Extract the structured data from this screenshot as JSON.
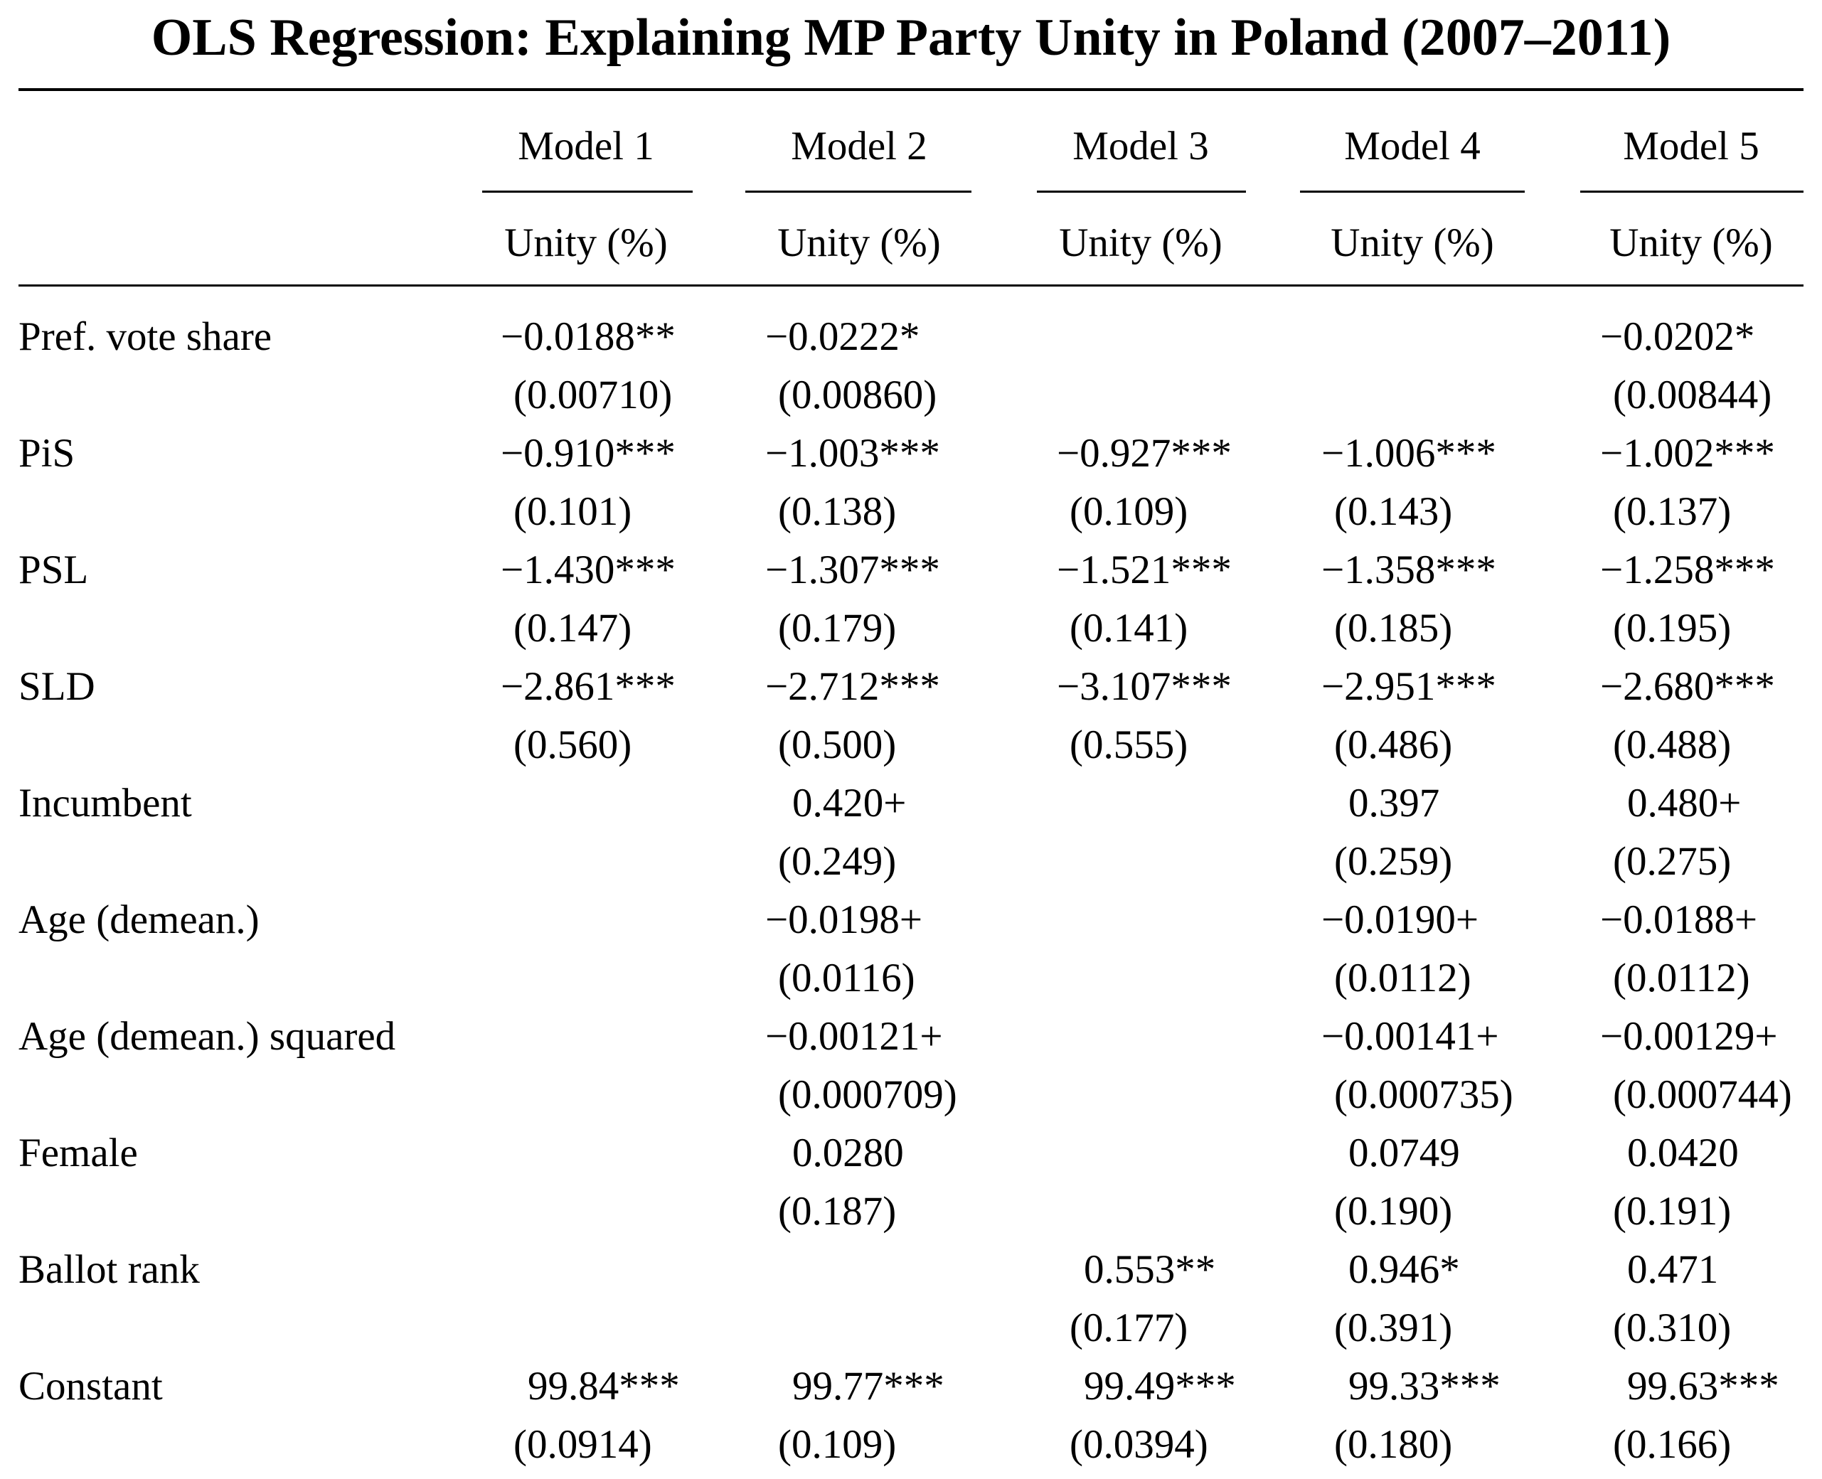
{
  "title": "OLS Regression: Explaining MP Party Unity in Poland (2007–2011)",
  "columns": [
    {
      "model": "Model 1",
      "dv": "Unity (%)"
    },
    {
      "model": "Model 2",
      "dv": "Unity (%)"
    },
    {
      "model": "Model 3",
      "dv": "Unity (%)"
    },
    {
      "model": "Model 4",
      "dv": "Unity (%)"
    },
    {
      "model": "Model 5",
      "dv": "Unity (%)"
    }
  ],
  "rows": [
    {
      "label": "Pref. vote share",
      "coef": [
        "−0.0188**",
        "−0.0222*",
        "",
        "",
        "−0.0202*"
      ],
      "se": [
        "(0.00710)",
        "(0.00860)",
        "",
        "",
        "(0.00844)"
      ]
    },
    {
      "label": "PiS",
      "coef": [
        "−0.910***",
        "−1.003***",
        "−0.927***",
        "−1.006***",
        "−1.002***"
      ],
      "se": [
        "(0.101)",
        "(0.138)",
        "(0.109)",
        "(0.143)",
        "(0.137)"
      ]
    },
    {
      "label": "PSL",
      "coef": [
        "−1.430***",
        "−1.307***",
        "−1.521***",
        "−1.358***",
        "−1.258***"
      ],
      "se": [
        "(0.147)",
        "(0.179)",
        "(0.141)",
        "(0.185)",
        "(0.195)"
      ]
    },
    {
      "label": "SLD",
      "coef": [
        "−2.861***",
        "−2.712***",
        "−3.107***",
        "−2.951***",
        "−2.680***"
      ],
      "se": [
        "(0.560)",
        "(0.500)",
        "(0.555)",
        "(0.486)",
        "(0.488)"
      ]
    },
    {
      "label": "Incumbent",
      "coef": [
        "",
        "0.420+",
        "",
        "0.397",
        "0.480+"
      ],
      "se": [
        "",
        "(0.249)",
        "",
        "(0.259)",
        "(0.275)"
      ]
    },
    {
      "label": "Age (demean.)",
      "coef": [
        "",
        "−0.0198+",
        "",
        "−0.0190+",
        "−0.0188+"
      ],
      "se": [
        "",
        "(0.0116)",
        "",
        "(0.0112)",
        "(0.0112)"
      ]
    },
    {
      "label": "Age (demean.) squared",
      "coef": [
        "",
        "−0.00121+",
        "",
        "−0.00141+",
        "−0.00129+"
      ],
      "se": [
        "",
        "(0.000709)",
        "",
        "(0.000735)",
        "(0.000744)"
      ]
    },
    {
      "label": "Female",
      "coef": [
        "",
        "0.0280",
        "",
        "0.0749",
        "0.0420"
      ],
      "se": [
        "",
        "(0.187)",
        "",
        "(0.190)",
        "(0.191)"
      ]
    },
    {
      "label": "Ballot rank",
      "coef": [
        "",
        "",
        "0.553**",
        "0.946*",
        "0.471"
      ],
      "se": [
        "",
        "",
        "(0.177)",
        "(0.391)",
        "(0.310)"
      ]
    },
    {
      "label": "Constant",
      "coef": [
        "99.84***",
        "99.77***",
        "99.49***",
        "99.33***",
        "99.63***"
      ],
      "se": [
        "(0.0914)",
        "(0.109)",
        "(0.0394)",
        "(0.180)",
        "(0.166)"
      ]
    }
  ]
}
